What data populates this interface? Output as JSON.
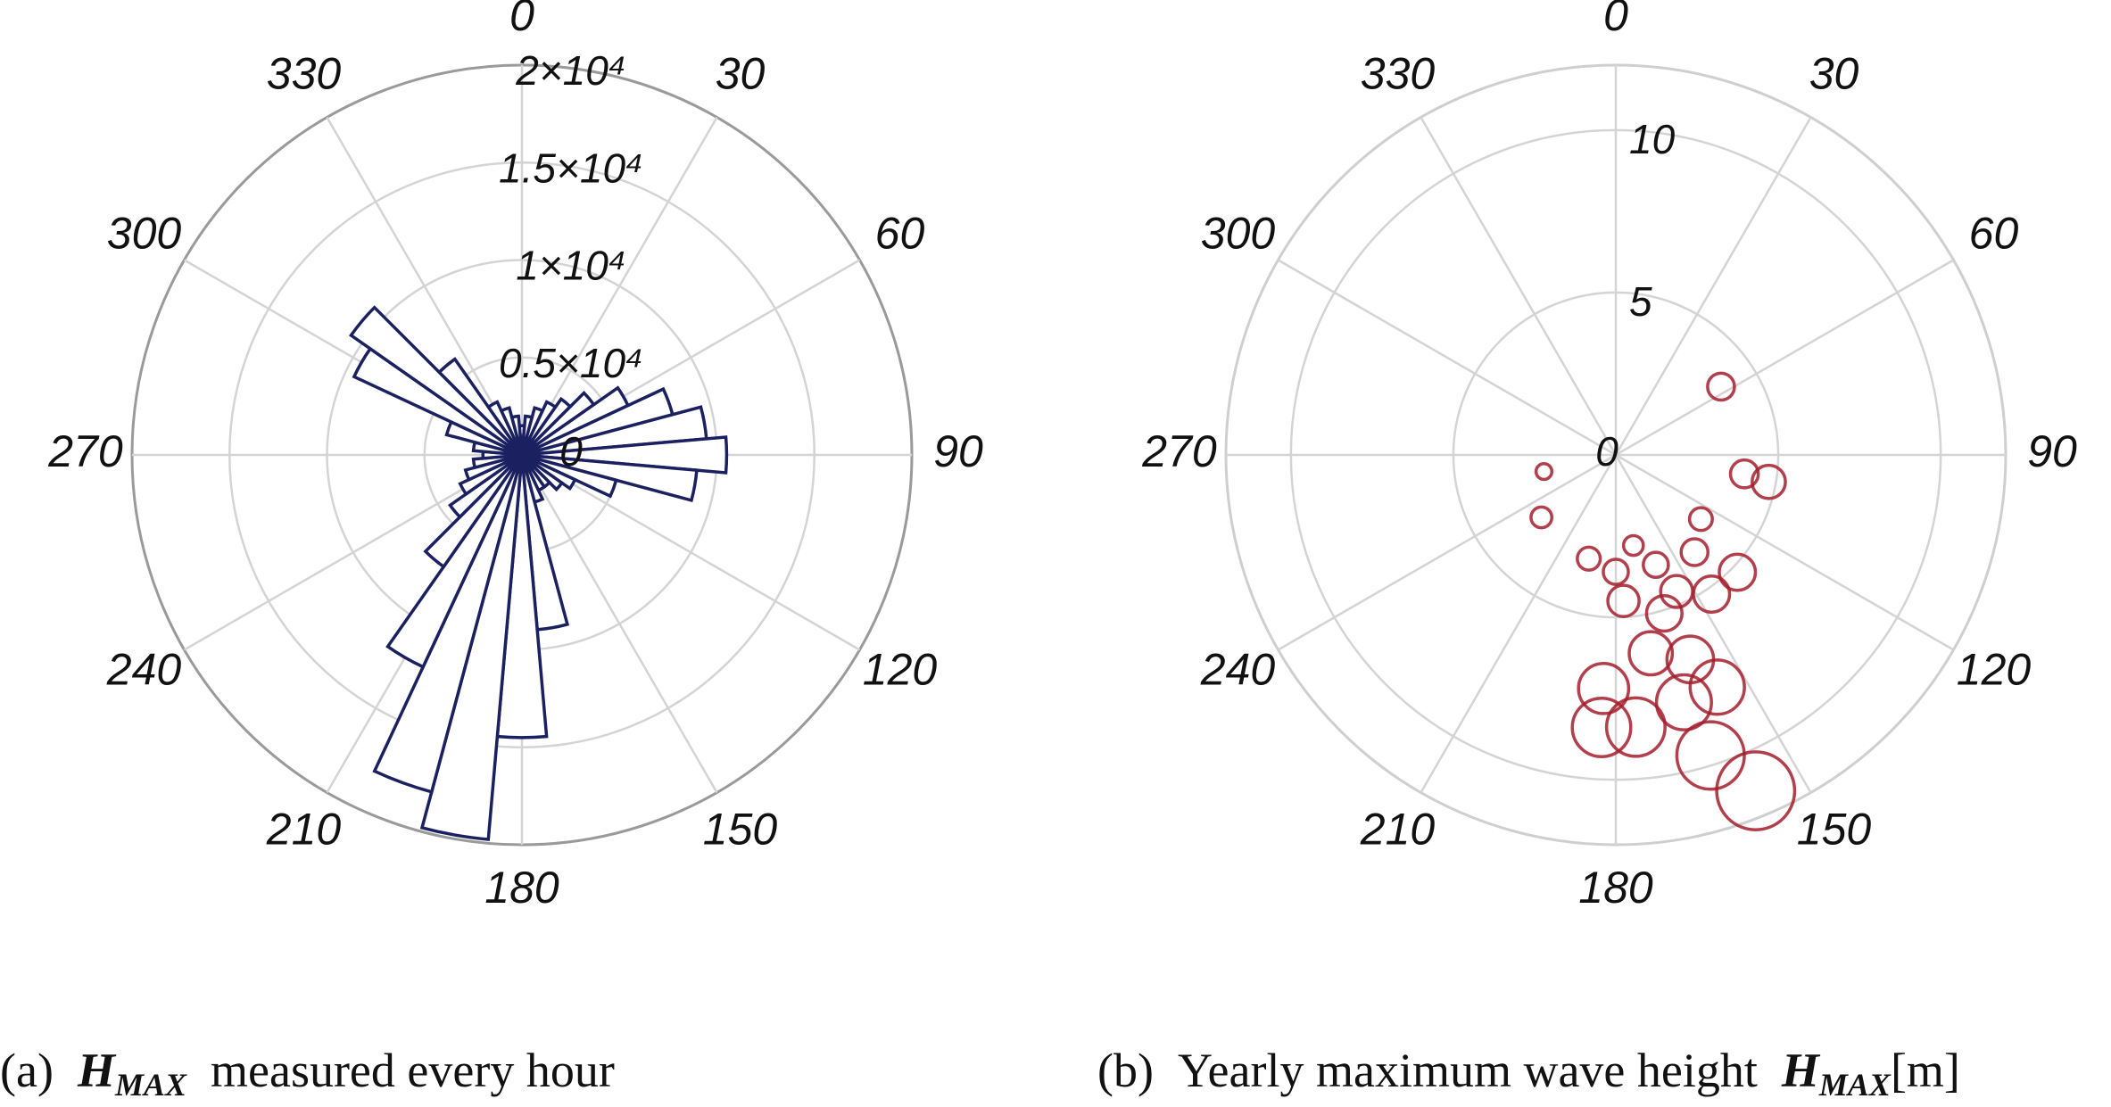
{
  "chart_data": [
    {
      "type": "polar-histogram",
      "color": "#1b2160",
      "theta_bins": [
        -5,
        5,
        15,
        25,
        35,
        45,
        55,
        65,
        75,
        85,
        95,
        105,
        115,
        125,
        135,
        145,
        155,
        165,
        175,
        185,
        195,
        205,
        215,
        225,
        235,
        245,
        255,
        265,
        275,
        285,
        295,
        305,
        315,
        325,
        335,
        345,
        355
      ],
      "values": [
        1500,
        2000,
        2500,
        3000,
        3500,
        4500,
        6000,
        8000,
        9500,
        10500,
        9000,
        5000,
        3000,
        2500,
        2000,
        2000,
        2500,
        9000,
        14500,
        19800,
        17900,
        12000,
        7000,
        4500,
        3500,
        3000,
        2500,
        2000,
        2500,
        4000,
        9500,
        10700,
        6000,
        3000,
        2500,
        2000
      ],
      "thetaticks": [
        0,
        30,
        60,
        90,
        120,
        150,
        180,
        210,
        240,
        270,
        300,
        330
      ],
      "rlim": [
        0,
        20000
      ],
      "rticks": [
        0,
        {
          "value": 5000,
          "label": "0.5×10⁴"
        },
        {
          "value": 10000,
          "label": "1×10⁴"
        },
        {
          "value": 15000,
          "label": "1.5×10⁴"
        },
        {
          "value": 20000,
          "label": "2×10⁴"
        }
      ],
      "caption": {
        "label": "(a)",
        "symbol": "H",
        "subscript": "MAX",
        "text": "measured every hour"
      }
    },
    {
      "type": "polar-bubble",
      "color": "#a51d2d",
      "theta": [
        57,
        98.4,
        100,
        257,
        230,
        127,
        141,
        134,
        194.6,
        169,
        180,
        160,
        156,
        145.5,
        177,
        170,
        160,
        183,
        164.6,
        175.8,
        183,
        162.5,
        157.4,
        156.4,
        163
      ],
      "r": [
        3.86,
        4.0,
        4.78,
        2.27,
        2.99,
        3.28,
        3.85,
        5.2,
        3.3,
        2.84,
        3.6,
        3.6,
        4.6,
        5.2,
        4.5,
        6.2,
        6.7,
        7.2,
        7.9,
        8.4,
        8.4,
        9.7,
        11.2,
        7.8,
        5.1
      ],
      "thetaticks": [
        0,
        30,
        60,
        90,
        120,
        150,
        180,
        210,
        240,
        270,
        300,
        330
      ],
      "rlim": [
        0,
        12
      ],
      "rticks": [
        0,
        5,
        10
      ],
      "caption": {
        "label": "(b)",
        "text": "Yearly maximum wave height",
        "symbol": "H",
        "subscript": "MAX",
        "unit": "[m]"
      }
    }
  ]
}
